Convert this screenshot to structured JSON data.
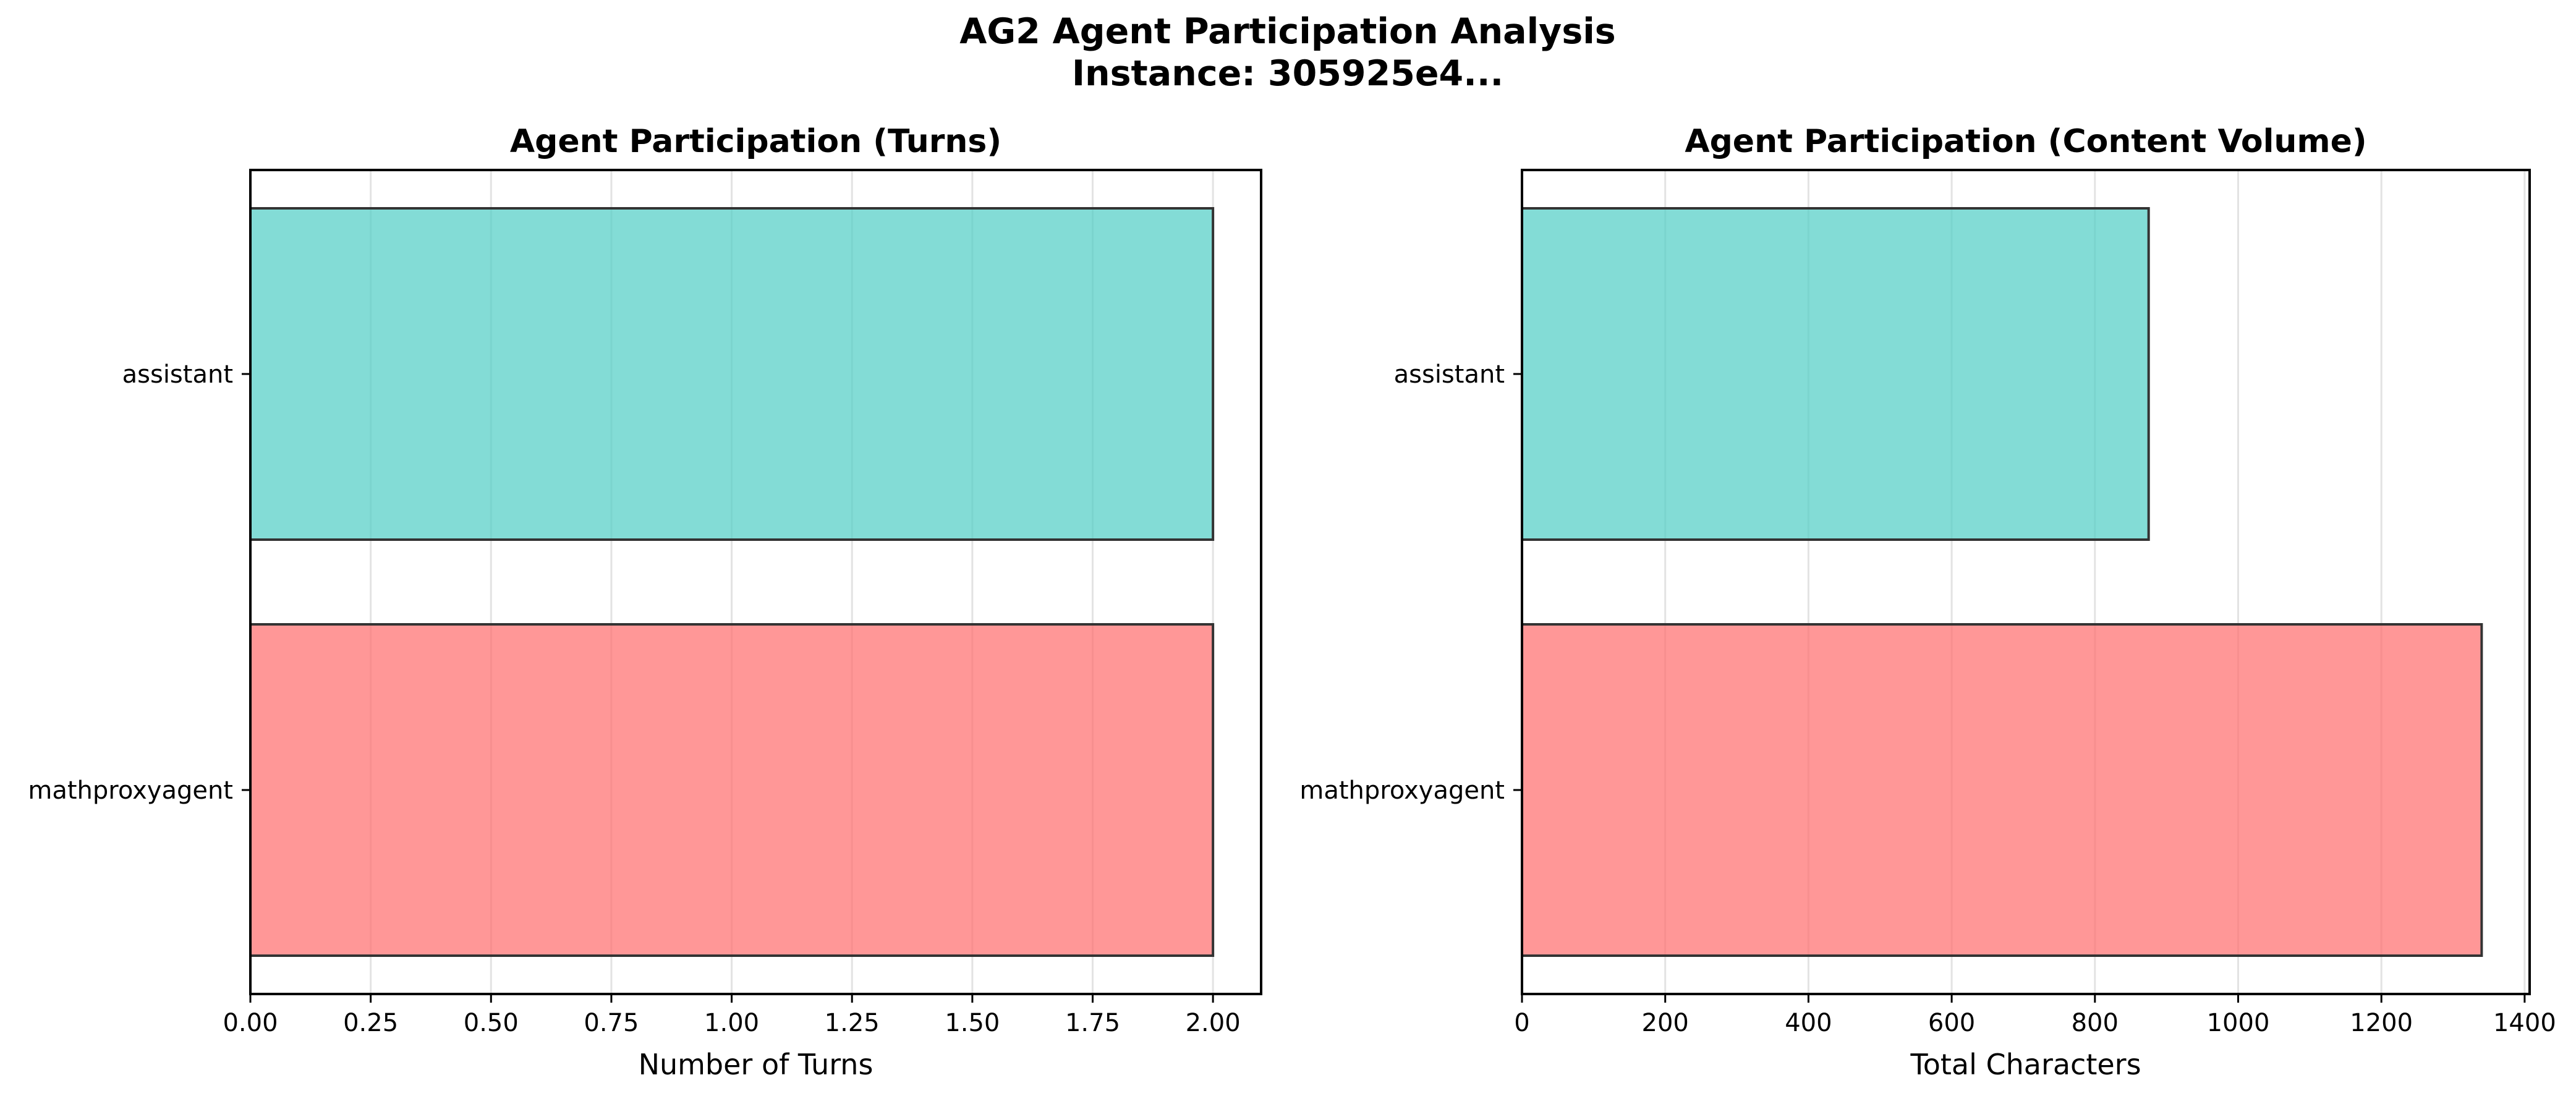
{
  "figure": {
    "title_line1": "AG2 Agent Participation Analysis",
    "title_line2": "Instance: 305925e4..."
  },
  "colors": {
    "assistant": "#4ECDC4",
    "mathproxyagent": "#FF6B6B",
    "edge": "#333333",
    "grid": "#e3e3e3"
  },
  "chart_data": [
    {
      "type": "bar",
      "orientation": "horizontal",
      "title": "Agent Participation (Turns)",
      "xlabel": "Number of Turns",
      "ylabel": "",
      "categories": [
        "assistant",
        "mathproxyagent"
      ],
      "values": [
        2,
        2
      ],
      "xlim": [
        0,
        2.1
      ],
      "xticks": [
        0,
        0.25,
        0.5,
        0.75,
        1.0,
        1.25,
        1.5,
        1.75,
        2.0
      ],
      "xtick_labels": [
        "0.00",
        "0.25",
        "0.50",
        "0.75",
        "1.00",
        "1.25",
        "1.50",
        "1.75",
        "2.00"
      ],
      "grid": "x",
      "bar_colors": [
        "#4ECDC4",
        "#FF6B6B"
      ]
    },
    {
      "type": "bar",
      "orientation": "horizontal",
      "title": "Agent Participation (Content Volume)",
      "xlabel": "Total Characters",
      "ylabel": "",
      "categories": [
        "assistant",
        "mathproxyagent"
      ],
      "values": [
        875,
        1340
      ],
      "xlim": [
        0,
        1407
      ],
      "xticks": [
        0,
        200,
        400,
        600,
        800,
        1000,
        1200,
        1400
      ],
      "xtick_labels": [
        "0",
        "200",
        "400",
        "600",
        "800",
        "1000",
        "1200",
        "1400"
      ],
      "grid": "x",
      "bar_colors": [
        "#4ECDC4",
        "#FF6B6B"
      ]
    }
  ]
}
